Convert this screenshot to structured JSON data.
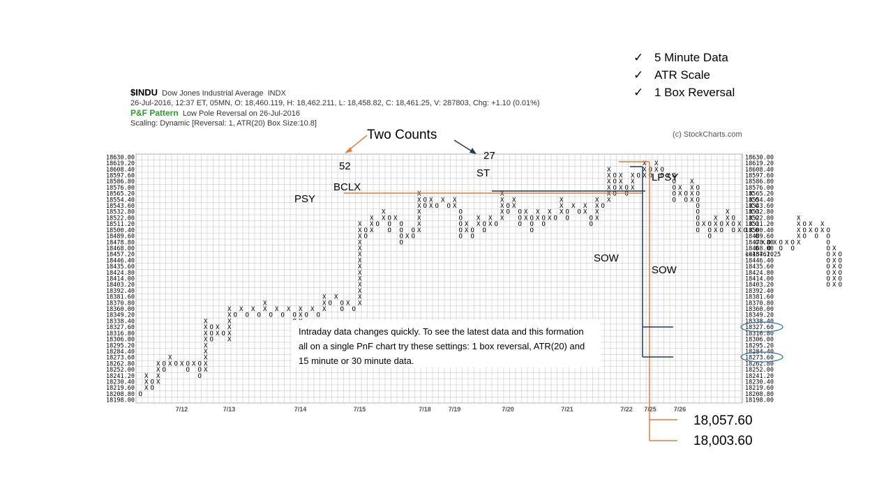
{
  "header": {
    "symbol": "$INDU",
    "name": "Dow Jones Industrial Average",
    "exchange": "INDX",
    "quote_line": "26-Jul-2016, 12:37 ET, 05MN, O: 18,460.119, H: 18,462.211, L: 18,458.82, C: 18,461.25, V: 287803, Chg: +1.10 (0.01%)",
    "pattern_label": "P&F Pattern",
    "pattern_value": "Low Pole Reversal on 26-Jul-2016",
    "scaling": "Scaling: Dynamic [Reversal: 1, ATR(20) Box Size:10.8]"
  },
  "checklist": [
    {
      "tick": "✓",
      "text": "5 Minute Data"
    },
    {
      "tick": "✓",
      "text": "ATR Scale"
    },
    {
      "tick": "✓",
      "text": "1 Box Reversal"
    }
  ],
  "copyright": "(c) StockCharts.com",
  "note": "Intraday data changes quickly. To see the latest data and this formation all on a single PnF chart try these settings: 1 box reversal, ATR(20) and 15 minute or 30 minute data.",
  "annotations": {
    "two_counts": "Two Counts",
    "count_52": "52",
    "count_27": "27",
    "bclx": "BCLX",
    "psy": "PSY",
    "st": "ST",
    "lpsy": "LPSY",
    "sow1": "SOW",
    "sow2": "SOW",
    "target1": "18,057.60",
    "target2": "18,003.60"
  },
  "colors": {
    "orange": "#e07b39",
    "navy": "#1f3864",
    "grid": "#c8c8c8",
    "last_price": "#c8102e",
    "highlight_circle": "#2e75b6"
  },
  "chart_data": {
    "type": "table",
    "chart_style": "point-and-figure",
    "box_size": 10.8,
    "reversal": 1,
    "y_levels": [
      18630.0,
      18619.2,
      18608.4,
      18597.6,
      18586.8,
      18576.0,
      18565.2,
      18554.4,
      18543.6,
      18532.8,
      18522.0,
      18511.2,
      18500.4,
      18489.6,
      18478.8,
      18468.0,
      18457.2,
      18446.4,
      18435.6,
      18424.8,
      18414.0,
      18403.2,
      18392.4,
      18381.6,
      18370.8,
      18360.0,
      18349.2,
      18338.4,
      18327.6,
      18316.8,
      18306.0,
      18295.2,
      18284.4,
      18273.6,
      18262.8,
      18252.0,
      18241.2,
      18230.4,
      18219.6,
      18208.8,
      18198.0
    ],
    "x_labels": [
      "7/12",
      "7/13",
      "7/14",
      "7/15",
      "7/18",
      "7/19",
      "7/20",
      "7/21",
      "7/22",
      "7/25",
      "7/26"
    ],
    "last_price_label": "<<18461.25",
    "circled_levels": [
      "18327.60",
      "18273.60"
    ],
    "columns": [
      {
        "t": "O",
        "top": 18208.8,
        "bottom": 18208.8
      },
      {
        "t": "X",
        "top": 18241.2,
        "bottom": 18219.6
      },
      {
        "t": "O",
        "top": 18230.4,
        "bottom": 18219.6
      },
      {
        "t": "X",
        "top": 18262.8,
        "bottom": 18230.4
      },
      {
        "t": "O",
        "top": 18262.8,
        "bottom": 18252.0
      },
      {
        "t": "X",
        "top": 18273.6,
        "bottom": 18262.8
      },
      {
        "t": "O",
        "top": 18262.8,
        "bottom": 18262.8
      },
      {
        "t": "X",
        "top": 18262.8,
        "bottom": 18262.8
      },
      {
        "t": "O",
        "top": 18262.8,
        "bottom": 18252.0
      },
      {
        "t": "X",
        "top": 18262.8,
        "bottom": 18262.8
      },
      {
        "t": "O",
        "top": 18262.8,
        "bottom": 18241.2
      },
      {
        "t": "X",
        "top": 18338.4,
        "bottom": 18252.0
      },
      {
        "t": "O",
        "top": 18327.6,
        "bottom": 18306.0
      },
      {
        "t": "X",
        "top": 18327.6,
        "bottom": 18316.8
      },
      {
        "t": "O",
        "top": 18316.8,
        "bottom": 18316.8
      },
      {
        "t": "X",
        "top": 18360.0,
        "bottom": 18306.0
      },
      {
        "t": "O",
        "top": 18349.2,
        "bottom": 18349.2
      },
      {
        "t": "X",
        "top": 18360.0,
        "bottom": 18360.0
      },
      {
        "t": "O",
        "top": 18349.2,
        "bottom": 18349.2
      },
      {
        "t": "X",
        "top": 18360.0,
        "bottom": 18360.0
      },
      {
        "t": "O",
        "top": 18349.2,
        "bottom": 18349.2
      },
      {
        "t": "X",
        "top": 18370.8,
        "bottom": 18360.0
      },
      {
        "t": "O",
        "top": 18349.2,
        "bottom": 18349.2
      },
      {
        "t": "X",
        "top": 18360.0,
        "bottom": 18360.0
      },
      {
        "t": "O",
        "top": 18349.2,
        "bottom": 18349.2
      },
      {
        "t": "X",
        "top": 18360.0,
        "bottom": 18360.0
      },
      {
        "t": "O",
        "top": 18349.2,
        "bottom": 18316.8
      },
      {
        "t": "X",
        "top": 18360.0,
        "bottom": 18327.6
      },
      {
        "t": "O",
        "top": 18349.2,
        "bottom": 18349.2
      },
      {
        "t": "X",
        "top": 18360.0,
        "bottom": 18360.0
      },
      {
        "t": "O",
        "top": 18349.2,
        "bottom": 18349.2
      },
      {
        "t": "X",
        "top": 18381.6,
        "bottom": 18360.0
      },
      {
        "t": "O",
        "top": 18370.8,
        "bottom": 18370.8
      },
      {
        "t": "X",
        "top": 18381.6,
        "bottom": 18381.6
      },
      {
        "t": "O",
        "top": 18370.8,
        "bottom": 18360.0
      },
      {
        "t": "X",
        "top": 18370.8,
        "bottom": 18370.8
      },
      {
        "t": "O",
        "top": 18360.0,
        "bottom": 18360.0
      },
      {
        "t": "X",
        "top": 18511.2,
        "bottom": 18370.8
      },
      {
        "t": "O",
        "top": 18500.4,
        "bottom": 18489.6
      },
      {
        "t": "X",
        "top": 18522.0,
        "bottom": 18500.4
      },
      {
        "t": "O",
        "top": 18511.2,
        "bottom": 18511.2
      },
      {
        "t": "X",
        "top": 18532.8,
        "bottom": 18522.0
      },
      {
        "t": "O",
        "top": 18522.0,
        "bottom": 18500.4
      },
      {
        "t": "X",
        "top": 18522.0,
        "bottom": 18522.0
      },
      {
        "t": "O",
        "top": 18511.2,
        "bottom": 18478.8
      },
      {
        "t": "X",
        "top": 18489.6,
        "bottom": 18489.6
      },
      {
        "t": "O",
        "top": 18500.4,
        "bottom": 18489.6
      },
      {
        "t": "X",
        "top": 18565.2,
        "bottom": 18500.4
      },
      {
        "t": "O",
        "top": 18554.4,
        "bottom": 18543.6
      },
      {
        "t": "X",
        "top": 18554.4,
        "bottom": 18543.6
      },
      {
        "t": "O",
        "top": 18543.6,
        "bottom": 18543.6
      },
      {
        "t": "X",
        "top": 18554.4,
        "bottom": 18554.4
      },
      {
        "t": "O",
        "top": 18543.6,
        "bottom": 18543.6
      },
      {
        "t": "X",
        "top": 18554.4,
        "bottom": 18543.6
      },
      {
        "t": "O",
        "top": 18532.8,
        "bottom": 18489.6
      },
      {
        "t": "X",
        "top": 18511.2,
        "bottom": 18500.4
      },
      {
        "t": "O",
        "top": 18500.4,
        "bottom": 18489.6
      },
      {
        "t": "X",
        "top": 18522.0,
        "bottom": 18511.2
      },
      {
        "t": "O",
        "top": 18511.2,
        "bottom": 18500.4
      },
      {
        "t": "X",
        "top": 18522.0,
        "bottom": 18511.2
      },
      {
        "t": "O",
        "top": 18511.2,
        "bottom": 18511.2
      },
      {
        "t": "X",
        "top": 18565.2,
        "bottom": 18522.0
      },
      {
        "t": "O",
        "top": 18543.6,
        "bottom": 18532.8
      },
      {
        "t": "X",
        "top": 18554.4,
        "bottom": 18543.6
      },
      {
        "t": "O",
        "top": 18532.8,
        "bottom": 18511.2
      },
      {
        "t": "X",
        "top": 18532.8,
        "bottom": 18522.0
      },
      {
        "t": "O",
        "top": 18522.0,
        "bottom": 18500.4
      },
      {
        "t": "X",
        "top": 18532.8,
        "bottom": 18522.0
      },
      {
        "t": "O",
        "top": 18522.0,
        "bottom": 18511.2
      },
      {
        "t": "X",
        "top": 18532.8,
        "bottom": 18522.0
      },
      {
        "t": "O",
        "top": 18522.0,
        "bottom": 18522.0
      },
      {
        "t": "X",
        "top": 18554.4,
        "bottom": 18532.8
      },
      {
        "t": "O",
        "top": 18532.8,
        "bottom": 18522.0
      },
      {
        "t": "X",
        "top": 18543.6,
        "bottom": 18543.6
      },
      {
        "t": "O",
        "top": 18532.8,
        "bottom": 18532.8
      },
      {
        "t": "X",
        "top": 18543.6,
        "bottom": 18532.8
      },
      {
        "t": "O",
        "top": 18522.0,
        "bottom": 18511.2
      },
      {
        "t": "X",
        "top": 18554.4,
        "bottom": 18522.0
      },
      {
        "t": "O",
        "top": 18543.6,
        "bottom": 18543.6
      },
      {
        "t": "X",
        "top": 18608.4,
        "bottom": 18554.4
      },
      {
        "t": "O",
        "top": 18597.6,
        "bottom": 18565.2
      },
      {
        "t": "X",
        "top": 18597.6,
        "bottom": 18576.0
      },
      {
        "t": "O",
        "top": 18576.0,
        "bottom": 18565.2
      },
      {
        "t": "X",
        "top": 18597.6,
        "bottom": 18576.0
      },
      {
        "t": "O",
        "top": 18597.6,
        "bottom": 18597.6
      },
      {
        "t": "X",
        "top": 18619.2,
        "bottom": 18597.6
      },
      {
        "t": "O",
        "top": 18608.4,
        "bottom": 18597.6
      },
      {
        "t": "X",
        "top": 18619.2,
        "bottom": 18608.4
      },
      {
        "t": "O",
        "top": 18608.4,
        "bottom": 18597.6
      },
      {
        "t": "X",
        "top": 18597.6,
        "bottom": 18597.6
      },
      {
        "t": "O",
        "top": 18597.6,
        "bottom": 18554.4
      },
      {
        "t": "X",
        "top": 18576.0,
        "bottom": 18565.2
      },
      {
        "t": "O",
        "top": 18565.2,
        "bottom": 18554.4
      },
      {
        "t": "X",
        "top": 18586.8,
        "bottom": 18554.4
      },
      {
        "t": "O",
        "top": 18576.0,
        "bottom": 18500.4
      },
      {
        "t": "X",
        "top": 18511.2,
        "bottom": 18511.2
      },
      {
        "t": "O",
        "top": 18511.2,
        "bottom": 18489.6
      },
      {
        "t": "X",
        "top": 18522.0,
        "bottom": 18500.4
      },
      {
        "t": "O",
        "top": 18511.2,
        "bottom": 18500.4
      },
      {
        "t": "X",
        "top": 18532.8,
        "bottom": 18511.2
      },
      {
        "t": "O",
        "top": 18522.0,
        "bottom": 18500.4
      },
      {
        "t": "X",
        "top": 18511.2,
        "bottom": 18500.4
      },
      {
        "t": "O",
        "top": 18500.4,
        "bottom": 18500.4
      },
      {
        "t": "X",
        "top": 18565.2,
        "bottom": 18500.4
      },
      {
        "t": "O",
        "top": 18554.4,
        "bottom": 18468.0
      },
      {
        "t": "X",
        "top": 18478.8,
        "bottom": 18478.8
      },
      {
        "t": "O",
        "top": 18478.8,
        "bottom": 18468.0
      },
      {
        "t": "X",
        "top": 18478.8,
        "bottom": 18478.8
      },
      {
        "t": "O",
        "top": 18478.8,
        "bottom": 18468.0
      },
      {
        "t": "X",
        "top": 18478.8,
        "bottom": 18478.8
      },
      {
        "t": "O",
        "top": 18478.8,
        "bottom": 18468.0
      },
      {
        "t": "X",
        "top": 18522.0,
        "bottom": 18478.8
      },
      {
        "t": "O",
        "top": 18511.2,
        "bottom": 18489.6
      },
      {
        "t": "X",
        "top": 18511.2,
        "bottom": 18500.4
      },
      {
        "t": "O",
        "top": 18500.4,
        "bottom": 18489.6
      },
      {
        "t": "X",
        "top": 18511.2,
        "bottom": 18500.4
      },
      {
        "t": "O",
        "top": 18500.4,
        "bottom": 18403.2
      },
      {
        "t": "X",
        "top": 18468.0,
        "bottom": 18403.2
      },
      {
        "t": "O",
        "top": 18457.2,
        "bottom": 18403.2
      }
    ]
  }
}
